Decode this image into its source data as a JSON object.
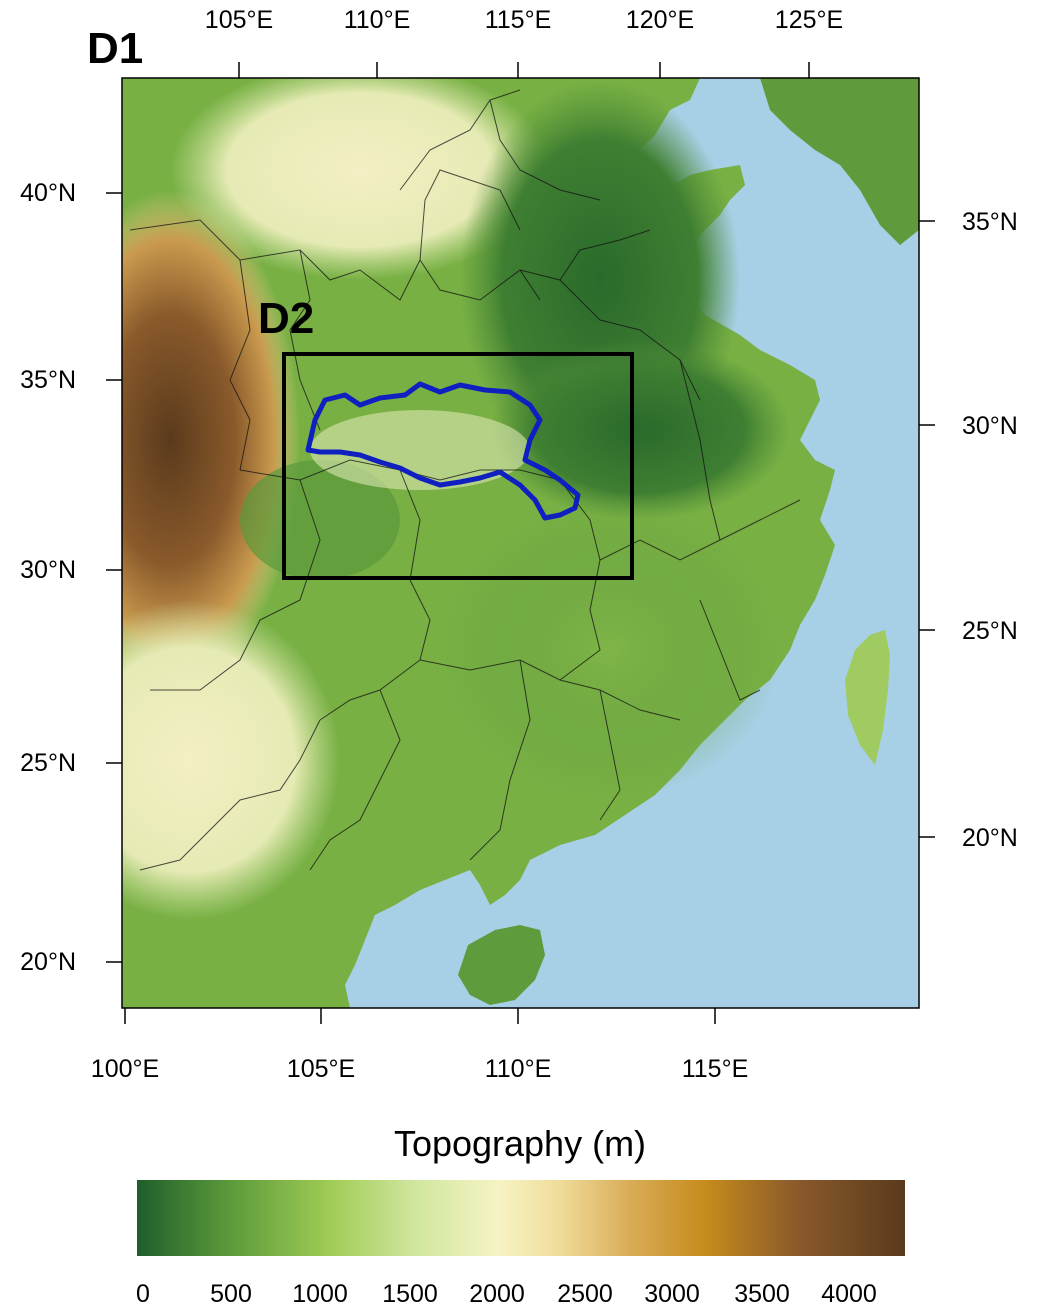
{
  "map": {
    "panel_label": "D1",
    "inner_domain_label": "D2",
    "colorbar_title": "Topography (m)",
    "top_axis_ticks": [
      "105°E",
      "110°E",
      "115°E",
      "120°E",
      "125°E"
    ],
    "bottom_axis_ticks": [
      "100°E",
      "105°E",
      "110°E",
      "115°E"
    ],
    "left_axis_ticks": [
      "40°N",
      "35°N",
      "30°N",
      "25°N",
      "20°N"
    ],
    "right_axis_ticks": [
      "35°N",
      "30°N",
      "25°N",
      "20°N"
    ],
    "colorbar_ticks": [
      "0",
      "500",
      "1000",
      "1500",
      "2000",
      "2500",
      "3000",
      "3500",
      "4000"
    ],
    "colors": {
      "ocean": "#a7d0e6",
      "low_green": "#2f6f2a",
      "mid_green": "#8cc04e",
      "light_green": "#cfe3a0",
      "cream": "#f4efc0",
      "tan": "#d9b46a",
      "brown": "#8a5a2b",
      "dark_brown": "#5a3a1c",
      "basin_outline": "#1020c0",
      "domain_box": "#000000"
    }
  },
  "chart_data": {
    "type": "heatmap",
    "title": "Topography (m)",
    "x_range_bottom": [
      "100°E",
      "120°E"
    ],
    "y_range_left": [
      "19°N",
      "43°N"
    ],
    "colorbar_range": [
      0,
      4300
    ],
    "colorbar_ticks": [
      0,
      500,
      1000,
      1500,
      2000,
      2500,
      3000,
      3500,
      4000
    ]
  }
}
